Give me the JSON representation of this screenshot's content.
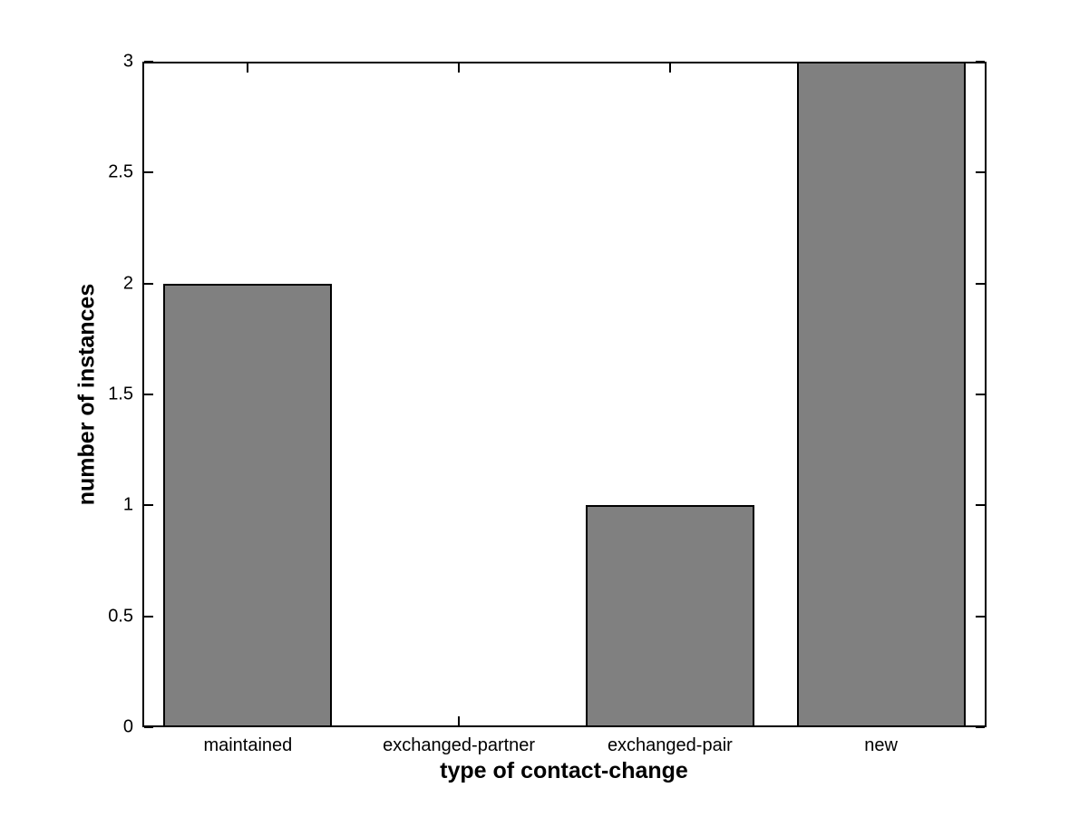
{
  "chart_data": {
    "type": "bar",
    "title": "",
    "xlabel": "type of contact-change",
    "ylabel": "number of instances",
    "categories": [
      "maintained",
      "exchanged-partner",
      "exchanged-pair",
      "new"
    ],
    "values": [
      2,
      0,
      1,
      3
    ],
    "ylim": [
      0,
      3
    ],
    "yticks": [
      0,
      0.5,
      1,
      1.5,
      2,
      2.5,
      3
    ],
    "ytick_labels": [
      "0",
      "0.5",
      "1",
      "1.5",
      "2",
      "2.5",
      "3"
    ],
    "bar_color": "#808080",
    "bar_edge_color": "#000000",
    "axis_color": "#000000",
    "background_color": "#ffffff",
    "bar_width_fraction": 0.8,
    "grid": false,
    "legend_position": "none"
  }
}
